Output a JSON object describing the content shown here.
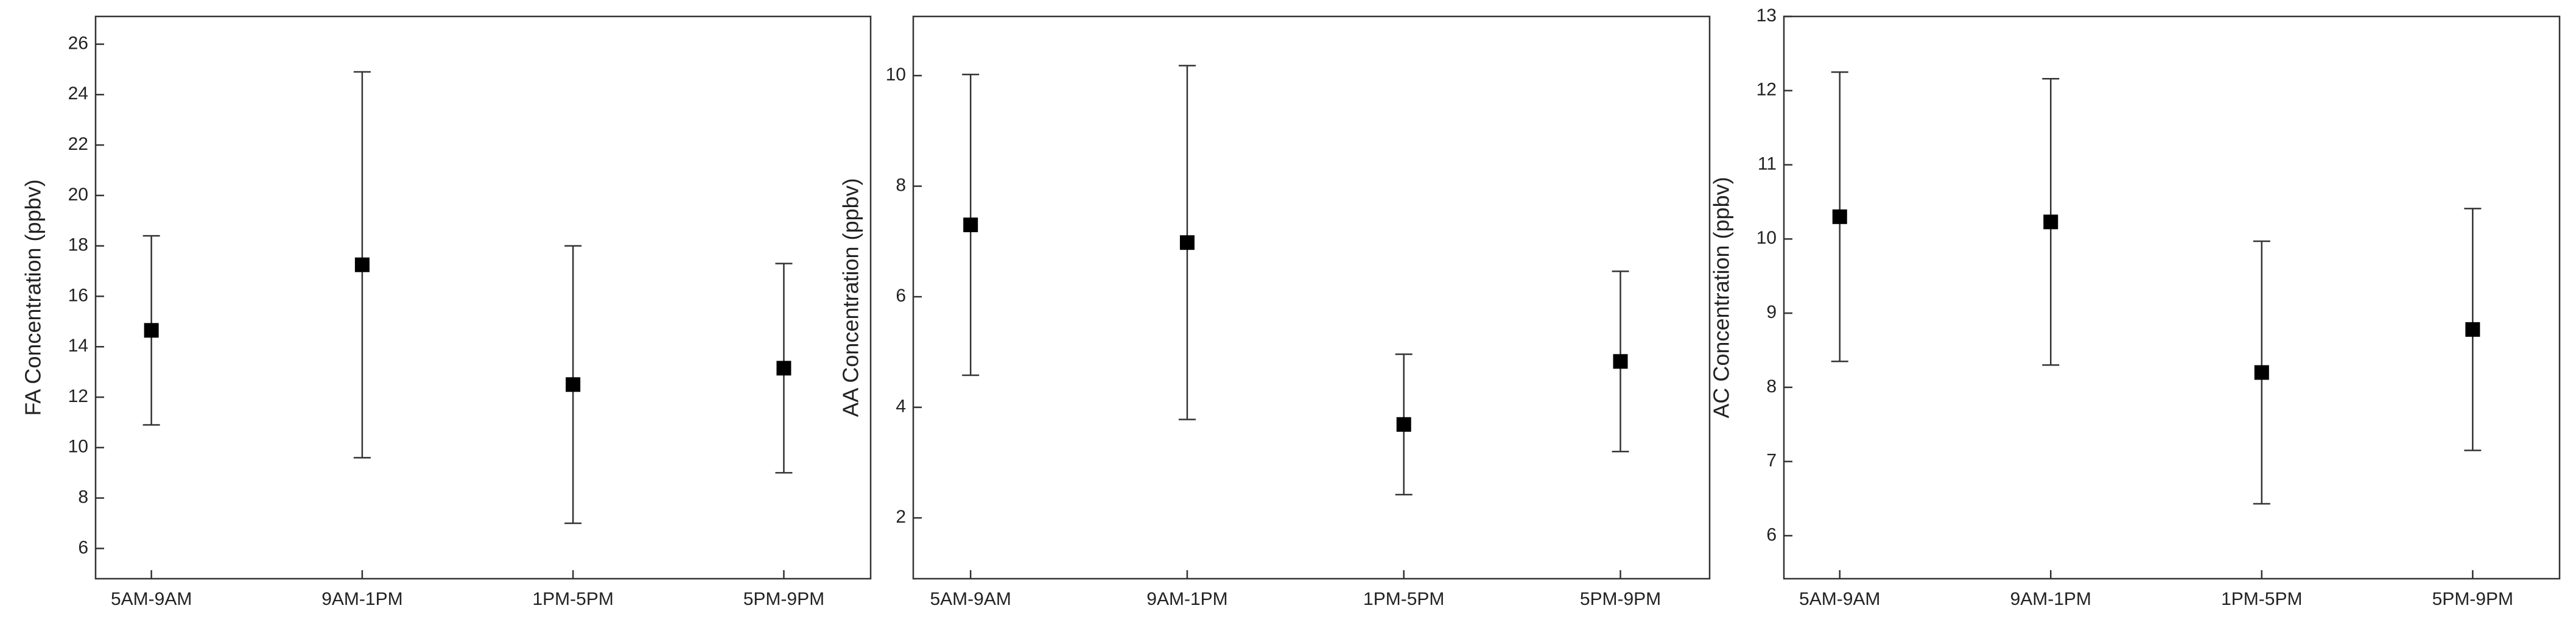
{
  "chart_data": [
    {
      "type": "errorbar",
      "ylabel": "FA Concentration (ppbv)",
      "categories": [
        "5AM-9AM",
        "9AM-1PM",
        "1PM-5PM",
        "5PM-9PM"
      ],
      "values": [
        14.65,
        17.25,
        12.5,
        13.15
      ],
      "errors": [
        3.75,
        7.65,
        5.5,
        4.15
      ],
      "color": "#000000",
      "ylim": [
        4.8,
        27.1
      ],
      "yticks": [
        6,
        8,
        10,
        12,
        14,
        16,
        18,
        20,
        22,
        24,
        26
      ]
    },
    {
      "type": "errorbar",
      "ylabel": "AA Concentration (ppbv)",
      "categories": [
        "5AM-9AM",
        "9AM-1PM",
        "1PM-5PM",
        "5PM-9PM"
      ],
      "values": [
        7.3,
        6.98,
        3.69,
        4.83
      ],
      "errors": [
        2.72,
        3.2,
        1.27,
        1.63
      ],
      "color": "#000000",
      "ylim": [
        0.9,
        11.07
      ],
      "yticks": [
        2,
        4,
        6,
        8,
        10
      ]
    },
    {
      "type": "errorbar",
      "ylabel": "AC Concentration (ppbv)",
      "categories": [
        "5AM-9AM",
        "9AM-1PM",
        "1PM-5PM",
        "5PM-9PM"
      ],
      "values": [
        10.3,
        10.23,
        8.2,
        8.78
      ],
      "errors": [
        1.95,
        1.93,
        1.77,
        1.63
      ],
      "color": "#000000",
      "ylim": [
        5.42,
        13.0
      ],
      "yticks": [
        6,
        7,
        8,
        9,
        10,
        11,
        12,
        13
      ]
    }
  ]
}
